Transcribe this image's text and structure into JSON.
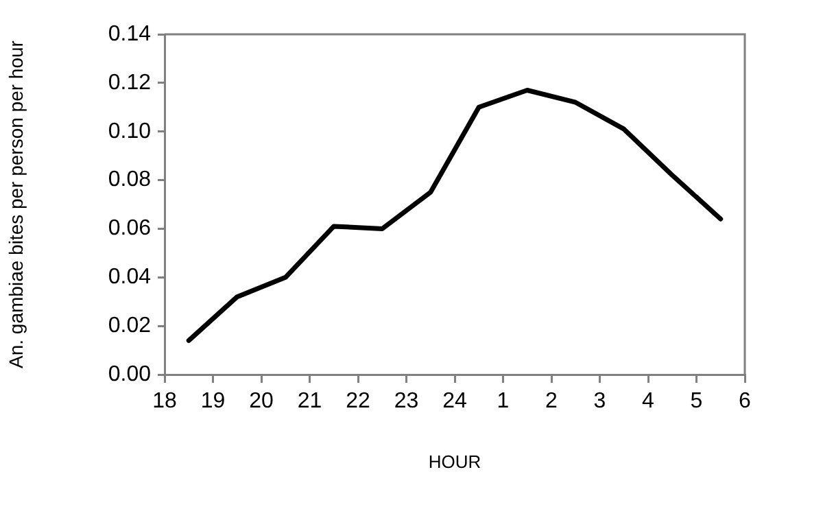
{
  "chart_data": {
    "type": "line",
    "xlabel": "HOUR",
    "ylabel": "An. gambiae bites per person per hour",
    "x": [
      "--01-01T18:30",
      "--01-01T19:30",
      "--01-01T20:30",
      "--01-01T21:30",
      "--01-01T22:30",
      "--01-01T23:30",
      "--01-02T00:30",
      "--01-02T01:30",
      "--01-02T02:30",
      "--01-02T03:30",
      "--01-02T04:30",
      "--01-02T05:30"
    ],
    "series": [
      {
        "color": "#000000",
        "values": [
          0.014,
          0.032,
          0.04,
          0.061,
          0.06,
          0.075,
          0.11,
          0.117,
          0.112,
          0.101,
          0.082,
          0.064
        ]
      }
    ],
    "xlim": [
      "--01-01T18:00",
      "--01-02T06:00"
    ],
    "xticks": [
      {
        "value": "--01-01T18:00",
        "label": "18"
      },
      {
        "value": "--01-01T19:00",
        "label": "19"
      },
      {
        "value": "--01-01T20:00",
        "label": "20"
      },
      {
        "value": "--01-01T21:00",
        "label": "21"
      },
      {
        "value": "--01-01T22:00",
        "label": "22"
      },
      {
        "value": "--01-01T23:00",
        "label": "23"
      },
      {
        "value": "--01-02T00:00",
        "label": "24"
      },
      {
        "value": "--01-02T01:00",
        "label": "1"
      },
      {
        "value": "--01-02T02:00",
        "label": "2"
      },
      {
        "value": "--01-02T03:00",
        "label": "3"
      },
      {
        "value": "--01-02T04:00",
        "label": "4"
      },
      {
        "value": "--01-02T05:00",
        "label": "5"
      },
      {
        "value": "--01-02T06:00",
        "label": "6"
      }
    ],
    "ylim": [
      0,
      0.14
    ],
    "yticks": [
      {
        "value": 0,
        "label": "0.00"
      },
      {
        "value": 0.02,
        "label": "0.02"
      },
      {
        "value": 0.04,
        "label": "0.04"
      },
      {
        "value": 0.06,
        "label": "0.06"
      },
      {
        "value": 0.08,
        "label": "0.08"
      },
      {
        "value": 0.1,
        "label": "0.10"
      },
      {
        "value": 0.12,
        "label": "0.12"
      },
      {
        "value": 0.14,
        "label": "0.14"
      }
    ],
    "grid": false,
    "legend": false,
    "marker": "none",
    "line_style": "solid"
  }
}
